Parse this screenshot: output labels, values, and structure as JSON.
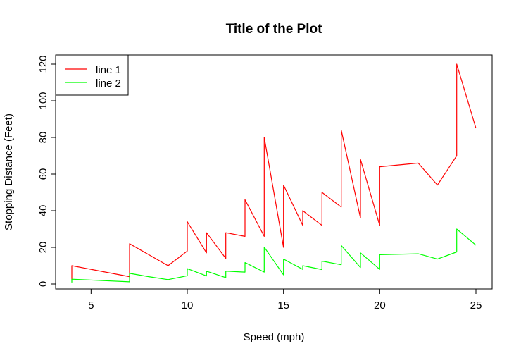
{
  "chart_data": {
    "type": "line",
    "title": "Title of the Plot",
    "xlabel": "Speed (mph)",
    "ylabel": "Stopping Distance (Feet)",
    "xlim": [
      4,
      25
    ],
    "ylim": [
      0,
      120
    ],
    "x_ticks": [
      5,
      10,
      15,
      20,
      25
    ],
    "y_ticks": [
      0,
      20,
      40,
      60,
      80,
      100,
      120
    ],
    "grid": false,
    "legend_position": "top-left",
    "x": [
      4,
      4,
      7,
      7,
      8,
      9,
      10,
      10,
      10,
      11,
      11,
      12,
      12,
      12,
      12,
      13,
      13,
      13,
      13,
      14,
      14,
      14,
      14,
      15,
      15,
      15,
      16,
      16,
      17,
      17,
      17,
      18,
      18,
      18,
      18,
      19,
      19,
      19,
      20,
      20,
      20,
      20,
      20,
      22,
      23,
      24,
      24,
      24,
      24,
      25
    ],
    "series": [
      {
        "name": "line 1",
        "color": "#ff0000",
        "values": [
          2,
          10,
          4,
          22,
          16,
          10,
          18,
          26,
          34,
          17,
          28,
          14,
          20,
          24,
          28,
          26,
          34,
          34,
          46,
          26,
          36,
          60,
          80,
          20,
          26,
          54,
          32,
          40,
          32,
          40,
          50,
          42,
          56,
          76,
          84,
          36,
          46,
          68,
          32,
          48,
          52,
          56,
          64,
          66,
          54,
          70,
          92,
          93,
          120,
          85
        ]
      },
      {
        "name": "line 2",
        "color": "#00ff00",
        "values": [
          0.8,
          2.6,
          1.2,
          5.8,
          4.0,
          2.4,
          4.5,
          6.3,
          8.4,
          4.4,
          7.0,
          3.5,
          5.1,
          6.0,
          7.0,
          6.5,
          8.5,
          8.5,
          11.7,
          6.5,
          9.0,
          14.9,
          20.1,
          5.0,
          6.5,
          13.6,
          8.0,
          10.0,
          7.9,
          10.0,
          12.5,
          10.5,
          14.0,
          18.9,
          21.0,
          9.0,
          11.6,
          17.0,
          8.0,
          12.0,
          13.1,
          14.1,
          16.0,
          16.5,
          13.6,
          17.5,
          23.0,
          23.4,
          30.0,
          21.2
        ]
      }
    ]
  }
}
